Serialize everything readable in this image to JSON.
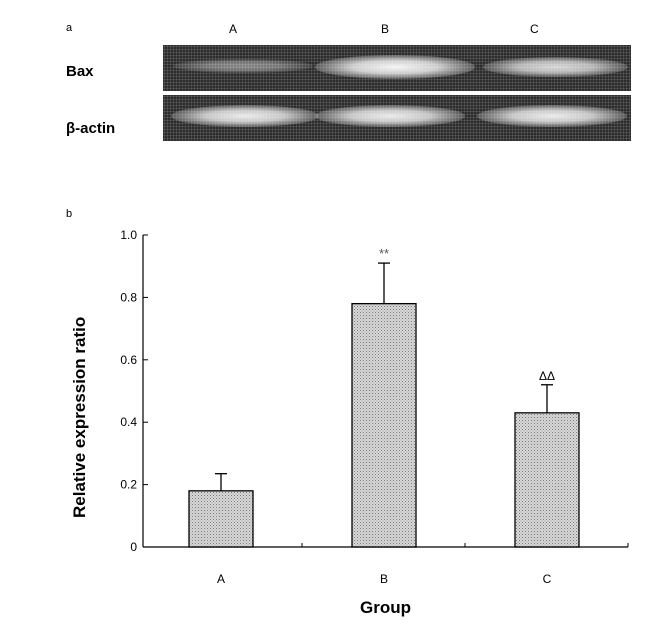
{
  "panel_a": {
    "letter": "a",
    "lanes": [
      "A",
      "B",
      "C"
    ],
    "rows": [
      {
        "label": "Bax",
        "band_intensity": [
          0.35,
          1.0,
          0.8
        ]
      },
      {
        "label": "β-actin",
        "band_intensity": [
          0.95,
          0.95,
          0.95
        ]
      }
    ]
  },
  "panel_b": {
    "letter": "b"
  },
  "colors": {
    "bar_fill": "#c8c8c8",
    "gel_background": "#2d2d2d",
    "band": "#ffffff"
  },
  "chart_data": {
    "type": "bar",
    "categories": [
      "A",
      "B",
      "C"
    ],
    "values": [
      0.18,
      0.78,
      0.43
    ],
    "errors": [
      0.055,
      0.13,
      0.09
    ],
    "annotations": [
      "",
      "**",
      "ΔΔ"
    ],
    "title": "",
    "xlabel": "Group",
    "ylabel": "Relative expression ratio",
    "ylim": [
      0,
      1.0
    ],
    "yticks": [
      "0",
      "0.2",
      "0.4",
      "0.6",
      "0.8",
      "1.0"
    ],
    "grid": false
  }
}
